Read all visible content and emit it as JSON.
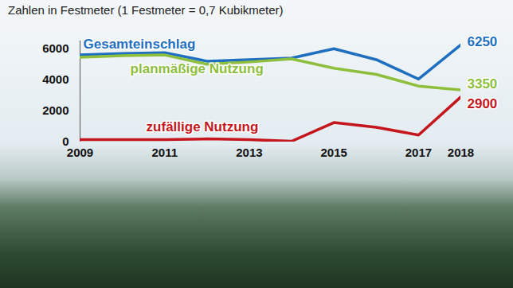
{
  "chart_data": {
    "type": "line",
    "subtitle": "Zahlen in Festmeter (1 Festmeter = 0,7 Kubikmeter)",
    "x": [
      2009,
      2010,
      2011,
      2012,
      2013,
      2014,
      2015,
      2016,
      2017,
      2018
    ],
    "series": [
      {
        "name": "Gesamteinschlag",
        "color": "#1f6fc0",
        "values": [
          5600,
          5700,
          5750,
          5200,
          5300,
          5400,
          6000,
          5300,
          4050,
          6250
        ],
        "value_labels": [
          null,
          null,
          null,
          null,
          null,
          null,
          null,
          null,
          null,
          "6250"
        ]
      },
      {
        "name": "planmäßige Nutzung",
        "color": "#8dbf3c",
        "values": [
          5450,
          5550,
          5600,
          5000,
          5150,
          5350,
          4750,
          4350,
          3600,
          3350
        ],
        "value_labels": [
          null,
          null,
          null,
          null,
          null,
          null,
          null,
          null,
          null,
          "3350"
        ]
      },
      {
        "name": "zufällige Nutzung",
        "color": "#c4161c",
        "values": [
          150,
          150,
          150,
          200,
          150,
          50,
          1250,
          950,
          450,
          2900
        ],
        "value_labels": [
          null,
          null,
          null,
          null,
          null,
          null,
          null,
          null,
          null,
          "2900"
        ]
      }
    ],
    "xlim": [
      2009,
      2018
    ],
    "xticks": [
      2009,
      2011,
      2013,
      2015,
      2017,
      2018
    ],
    "ylim": [
      0,
      6500
    ],
    "yticks": [
      0,
      2000,
      4000,
      6000
    ],
    "grid": false
  }
}
